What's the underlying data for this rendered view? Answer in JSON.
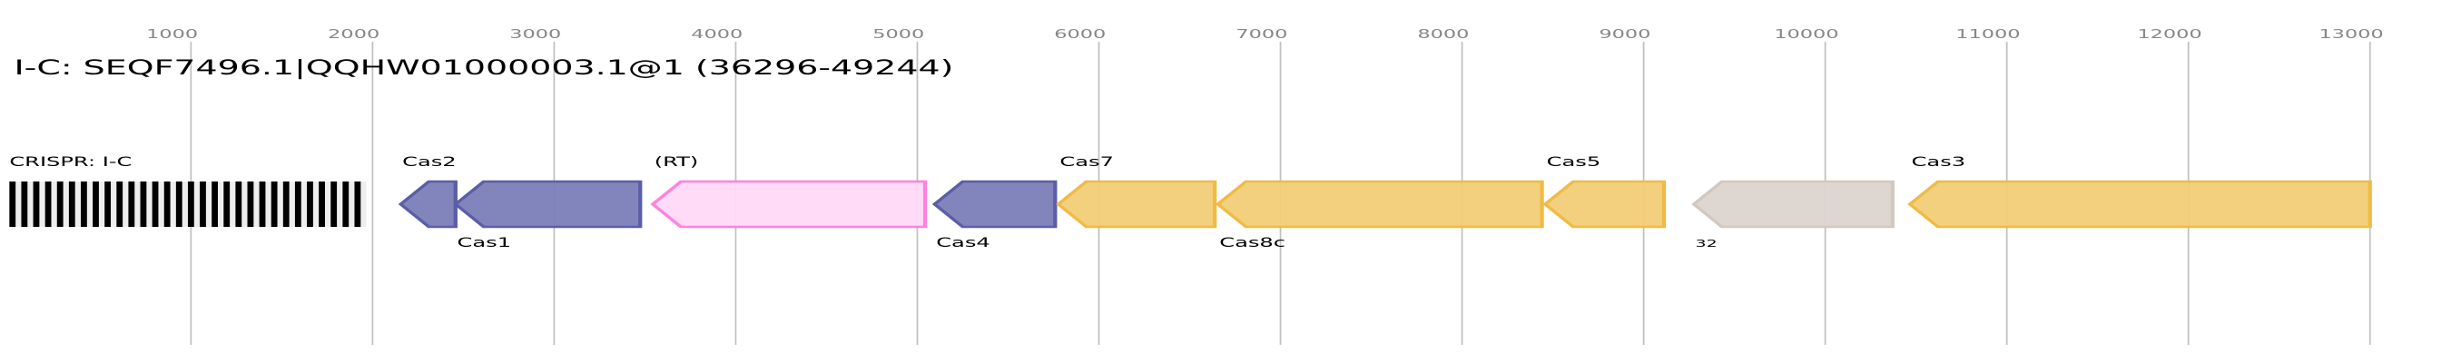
{
  "title": "I-C: SEQF7496.1|QQHW01000003.1@1 (36296-49244)",
  "axis": {
    "ticks": [
      1000,
      2000,
      3000,
      4000,
      5000,
      6000,
      7000,
      8000,
      9000,
      10000,
      11000,
      12000,
      13000
    ]
  },
  "crispr": {
    "label": "CRISPR: I-C",
    "start": 0,
    "end": 1966,
    "repeat_count": 30
  },
  "genes": [
    {
      "label": "Cas2",
      "start": 2155,
      "end": 2457,
      "strand": "-",
      "color": "purple",
      "label_position": "above"
    },
    {
      "label": "Cas1",
      "start": 2457,
      "end": 3474,
      "strand": "-",
      "color": "purple",
      "label_position": "below"
    },
    {
      "label": "(RT)",
      "start": 3543,
      "end": 5043,
      "strand": "-",
      "color": "pink",
      "label_position": "above"
    },
    {
      "label": "Cas4",
      "start": 5095,
      "end": 5759,
      "strand": "-",
      "color": "purple",
      "label_position": "below"
    },
    {
      "label": "Cas7",
      "start": 5776,
      "end": 6638,
      "strand": "-",
      "color": "yellow",
      "label_position": "above"
    },
    {
      "label": "Cas8c",
      "start": 6655,
      "end": 8440,
      "strand": "-",
      "color": "yellow",
      "label_position": "below"
    },
    {
      "label": "Cas5",
      "start": 8457,
      "end": 9112,
      "strand": "-",
      "color": "yellow",
      "label_position": "above"
    },
    {
      "label": "32",
      "start": 9276,
      "end": 10371,
      "strand": "-",
      "color": "grey",
      "label_position": "below",
      "small": true
    },
    {
      "label": "Cas3",
      "start": 10466,
      "end": 13000,
      "strand": "-",
      "color": "yellow",
      "label_position": "above"
    }
  ],
  "colors": {
    "purple": {
      "fill": "#7b7eb8",
      "stroke": "#5b5ea6"
    },
    "pink": {
      "fill": "#ffd9f7",
      "stroke": "#ff80e0"
    },
    "yellow": {
      "fill": "#f2cd76",
      "stroke": "#efbb45"
    },
    "grey": {
      "fill": "#dcd4cf",
      "stroke": "#d3c8c0"
    },
    "grid": "#c0c0c0",
    "crispr_bar": "#000000",
    "crispr_bg": "#eeeeee"
  }
}
